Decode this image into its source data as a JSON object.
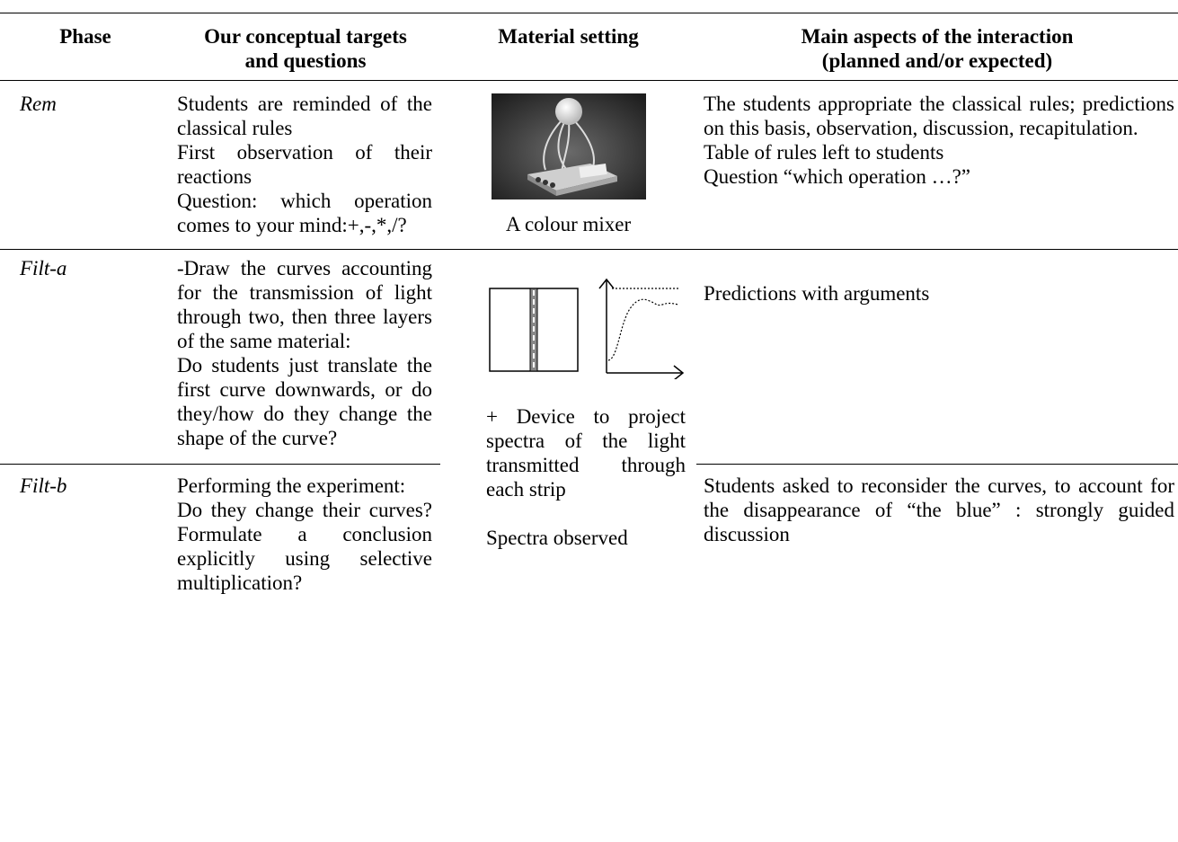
{
  "table": {
    "header": [
      [
        "Phase"
      ],
      [
        "Our conceptual targets",
        "and questions"
      ],
      [
        "Material setting"
      ],
      [
        "Main aspects of the interaction",
        "(planned and/or expected)"
      ]
    ],
    "rows": [
      {
        "phase": "Rem",
        "targets": [
          "Students are reminded of the classical rules",
          "First observation of their reactions",
          "Question: which operation comes to your mind:+,-,*,/?"
        ],
        "material": {
          "caption": "A colour mixer"
        },
        "interaction": [
          "The students appropriate the classical rules; predictions on this basis, observation, discussion, recapitulation.",
          "Table of rules left to students",
          "Question “which operation …?”"
        ]
      },
      {
        "phase": "Filt-a",
        "targets": [
          "-Draw the curves accounting for the transmission of light through two, then three layers of the same material:",
          "Do students just translate the first curve downwards, or do they/how do they change the shape of the curve?"
        ],
        "material": {
          "notes": [
            "+ Device to project spectra of the light transmitted through each strip",
            "Spectra observed"
          ]
        },
        "interaction": [
          "Predictions with arguments"
        ]
      },
      {
        "phase": "Filt-b",
        "targets": [
          "Performing the experiment:",
          "Do they change their curves? Formulate a conclusion explicitly using selective multiplication?"
        ],
        "interaction": [
          "Students asked to reconsider the curves, to account for the disappearance of “the blue” : strongly guided discussion"
        ]
      }
    ]
  }
}
